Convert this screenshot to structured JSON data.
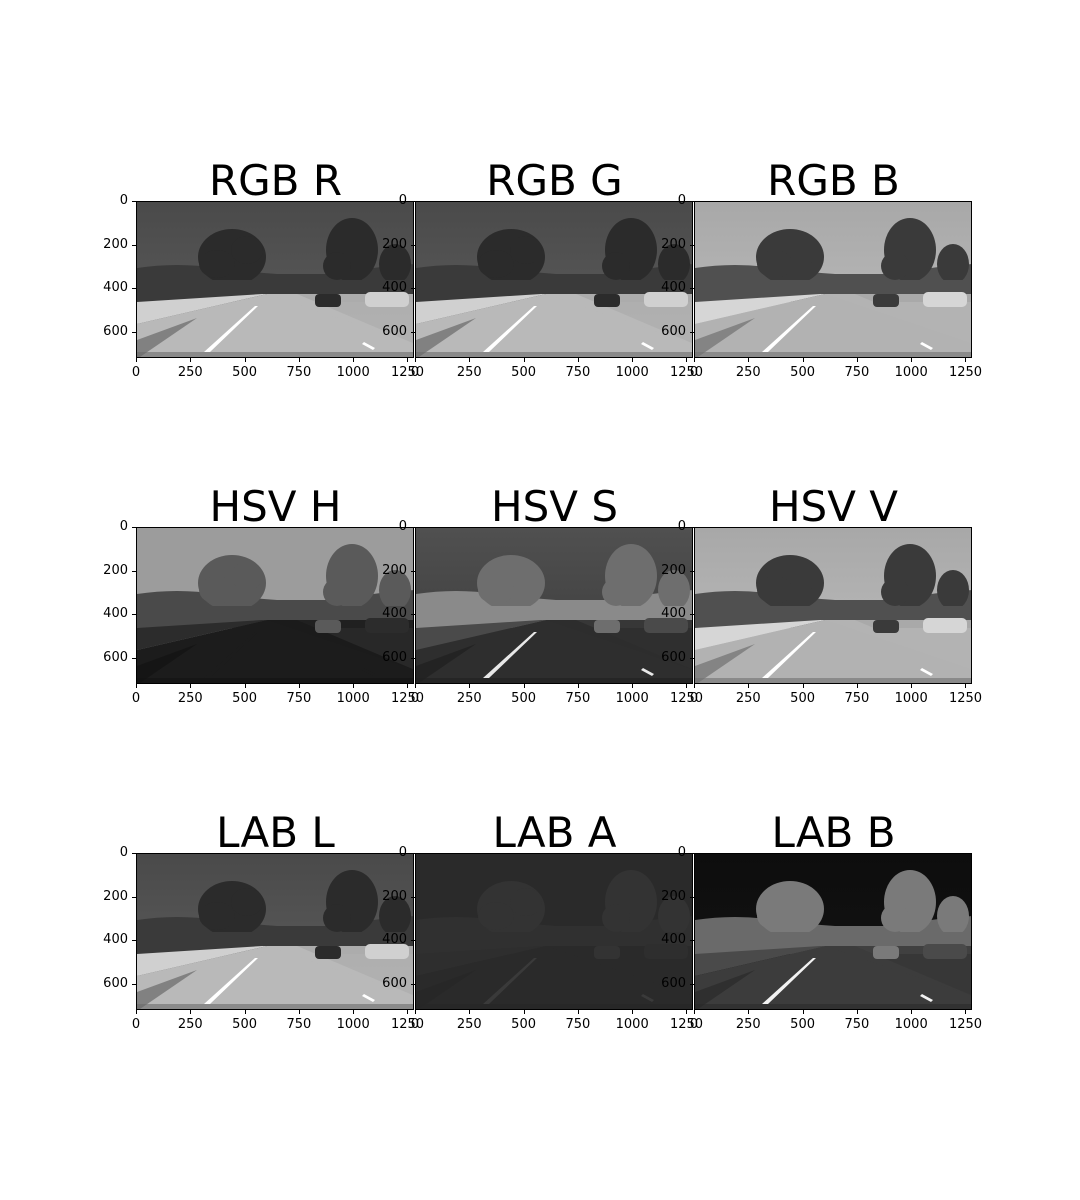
{
  "figure": {
    "panels": [
      {
        "key": "rgb-r",
        "title": "RGB R",
        "tone": "rgb"
      },
      {
        "key": "rgb-g",
        "title": "RGB G",
        "tone": "rgb"
      },
      {
        "key": "rgb-b",
        "title": "RGB B",
        "tone": "rgbb"
      },
      {
        "key": "hsv-h",
        "title": "HSV H",
        "tone": "hue"
      },
      {
        "key": "hsv-s",
        "title": "HSV S",
        "tone": "sat"
      },
      {
        "key": "hsv-v",
        "title": "HSV V",
        "tone": "rgbb"
      },
      {
        "key": "lab-l",
        "title": "LAB L",
        "tone": "rgb"
      },
      {
        "key": "lab-a",
        "title": "LAB A",
        "tone": "laba"
      },
      {
        "key": "lab-b",
        "title": "LAB B",
        "tone": "labb"
      }
    ],
    "y_ticks": [
      "0",
      "200",
      "400",
      "600"
    ],
    "x_ticks": [
      "0",
      "250",
      "500",
      "750",
      "1000",
      "1250"
    ]
  }
}
